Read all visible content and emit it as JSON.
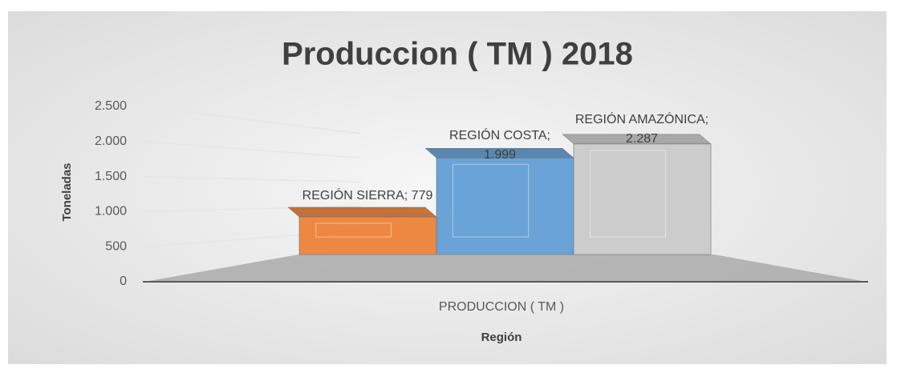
{
  "chart_data": {
    "type": "bar3d",
    "title": "Produccion ( TM ) 2018",
    "x_label": "Región",
    "y_label": "Toneladas",
    "categories": [
      "PRODUCCION ( TM )"
    ],
    "series": [
      {
        "color": "#ed7d31",
        "values": [
          779
        ],
        "value_labels": [
          "REGIÓN SIERRA; 779"
        ]
      },
      {
        "color": "#5b9bd5",
        "values": [
          1999
        ],
        "value_labels": [
          "REGIÓN COSTA; 1.999"
        ]
      },
      {
        "color": "#c9c9c9",
        "values": [
          2287
        ],
        "value_labels": [
          "REGIÓN AMAZÓNICA; 2.287"
        ]
      }
    ],
    "ylim": [
      0,
      2500
    ],
    "yticks": [
      0,
      500,
      {
        "value": 1000,
        "label": "1.000"
      },
      {
        "value": 1500,
        "label": "1.500"
      },
      {
        "value": 2000,
        "label": "2.000"
      },
      {
        "value": 2500,
        "label": "2.500"
      }
    ],
    "grid": true
  }
}
